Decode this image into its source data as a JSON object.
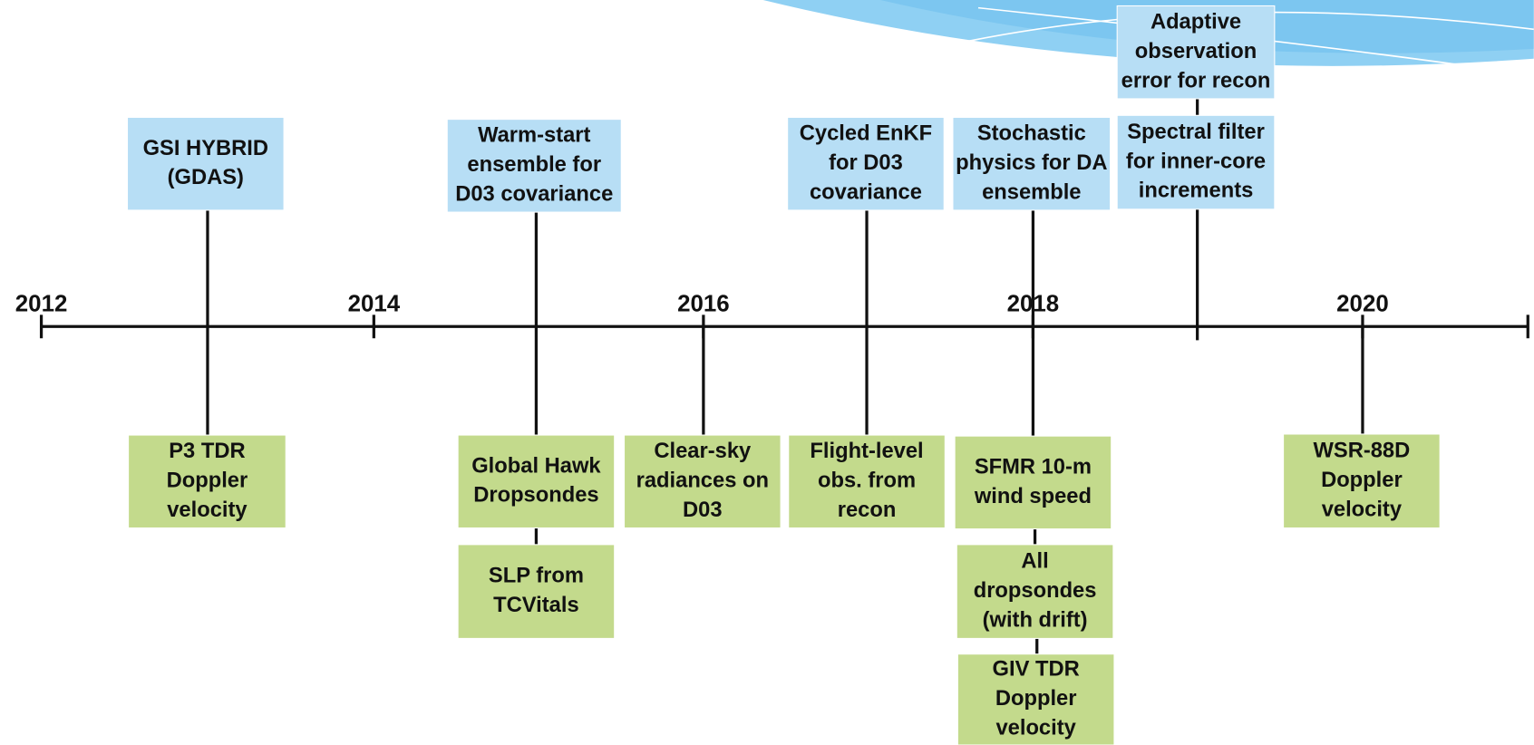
{
  "axis": {
    "labels": [
      "2012",
      "2014",
      "2016",
      "2018",
      "2020"
    ]
  },
  "above": [
    {
      "lines": [
        "GSI HYBRID",
        "(GDAS)"
      ]
    },
    {
      "lines": [
        "Warm-start",
        "ensemble for",
        "D03 covariance"
      ]
    },
    {
      "lines": [
        "Cycled EnKF",
        "for D03",
        "covariance"
      ]
    },
    {
      "lines": [
        "Stochastic",
        "physics for DA",
        "ensemble"
      ]
    },
    {
      "lines": [
        "Spectral filter",
        "for inner-core",
        "increments"
      ]
    },
    {
      "lines": [
        "Adaptive",
        "observation",
        "error for recon"
      ]
    }
  ],
  "below": [
    {
      "lines": [
        "P3 TDR",
        "Doppler",
        "velocity"
      ]
    },
    {
      "lines": [
        "Global Hawk",
        "Dropsondes"
      ]
    },
    {
      "lines": [
        "SLP from",
        "TCVitals"
      ]
    },
    {
      "lines": [
        "Clear-sky",
        "radiances on",
        "D03"
      ]
    },
    {
      "lines": [
        "Flight-level",
        "obs. from",
        "recon"
      ]
    },
    {
      "lines": [
        "SFMR 10-m",
        "wind speed"
      ]
    },
    {
      "lines": [
        "All",
        "dropsondes",
        "(with drift)"
      ]
    },
    {
      "lines": [
        "GIV TDR",
        "Doppler",
        "velocity"
      ]
    },
    {
      "lines": [
        "WSR-88D",
        "Doppler",
        "velocity"
      ]
    }
  ]
}
